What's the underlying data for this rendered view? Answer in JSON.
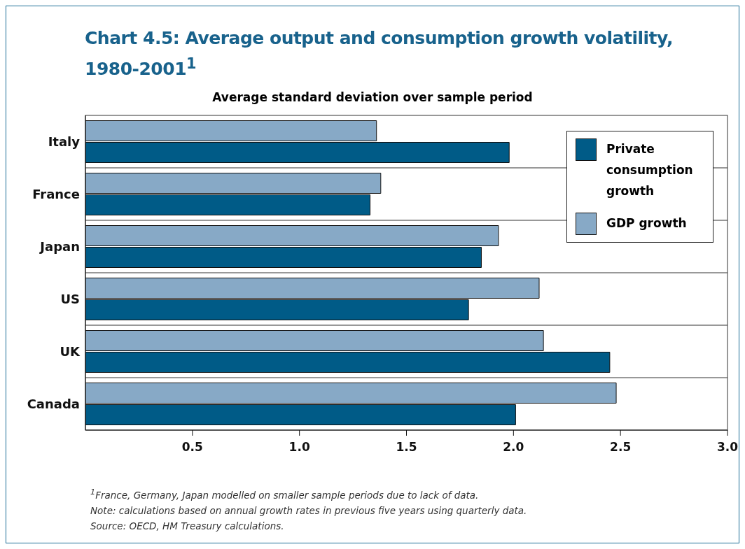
{
  "chart_data": {
    "type": "bar",
    "orientation": "horizontal",
    "title": "Chart 4.5: Average output and consumption growth volatility, 1980-2001$^{1}$",
    "subtitle": "Average standard deviation over sample period",
    "categories": [
      "Italy",
      "France",
      "Japan",
      "US",
      "UK",
      "Canada"
    ],
    "series": [
      {
        "name": "GDP growth",
        "color": "#87a9c6",
        "values": [
          1.36,
          1.38,
          1.93,
          2.12,
          2.14,
          2.48
        ]
      },
      {
        "name": "Private consumption growth",
        "color": "#005b87",
        "values": [
          1.98,
          1.33,
          1.85,
          1.79,
          2.45,
          2.01
        ]
      }
    ],
    "xlim": [
      0,
      3
    ],
    "xticks": [
      0.5,
      {
        "value": 1,
        "label": "1.0"
      },
      1.5,
      {
        "value": 2,
        "label": "2.0"
      },
      2.5,
      {
        "value": 3,
        "label": "3.0"
      }
    ],
    "grid": "y",
    "legend": "top right",
    "annotations": [
      "$^{1}$France, Germany, Japan modelled on smaller sample periods due to lack of data.",
      "Note: calculations based on annual growth rates in previous five years using quarterly data.",
      "Source: OECD, HM Treasury calculations."
    ]
  }
}
